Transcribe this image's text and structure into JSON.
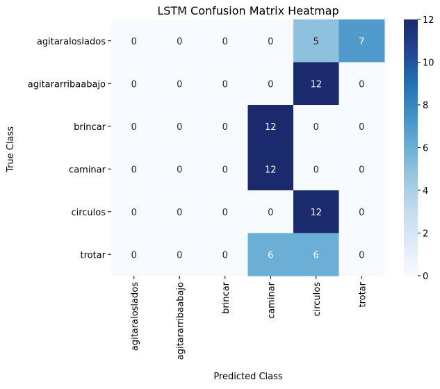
{
  "chart_data": {
    "type": "heatmap",
    "title": "LSTM Confusion Matrix Heatmap",
    "xlabel": "Predicted Class",
    "ylabel": "True Class",
    "x_categories": [
      "agitaraloslados",
      "agitararribaabajo",
      "brincar",
      "caminar",
      "circulos",
      "trotar"
    ],
    "y_categories": [
      "agitaraloslados",
      "agitararribaabajo",
      "brincar",
      "caminar",
      "circulos",
      "trotar"
    ],
    "values": [
      [
        0,
        0,
        0,
        0,
        5,
        7
      ],
      [
        0,
        0,
        0,
        0,
        12,
        0
      ],
      [
        0,
        0,
        0,
        12,
        0,
        0
      ],
      [
        0,
        0,
        0,
        12,
        0,
        0
      ],
      [
        0,
        0,
        0,
        0,
        12,
        0
      ],
      [
        0,
        0,
        0,
        6,
        6,
        0
      ]
    ],
    "colorbar": {
      "min": 0,
      "max": 12,
      "ticks": [
        "0",
        "2",
        "4",
        "6",
        "8",
        "10",
        "12"
      ],
      "colormap": "Blues"
    },
    "colors": {
      "light": "#f7fbff",
      "dark": "#1a2a6c",
      "annot_light_text": "#ffffff",
      "annot_dark_text": "#262626"
    }
  }
}
